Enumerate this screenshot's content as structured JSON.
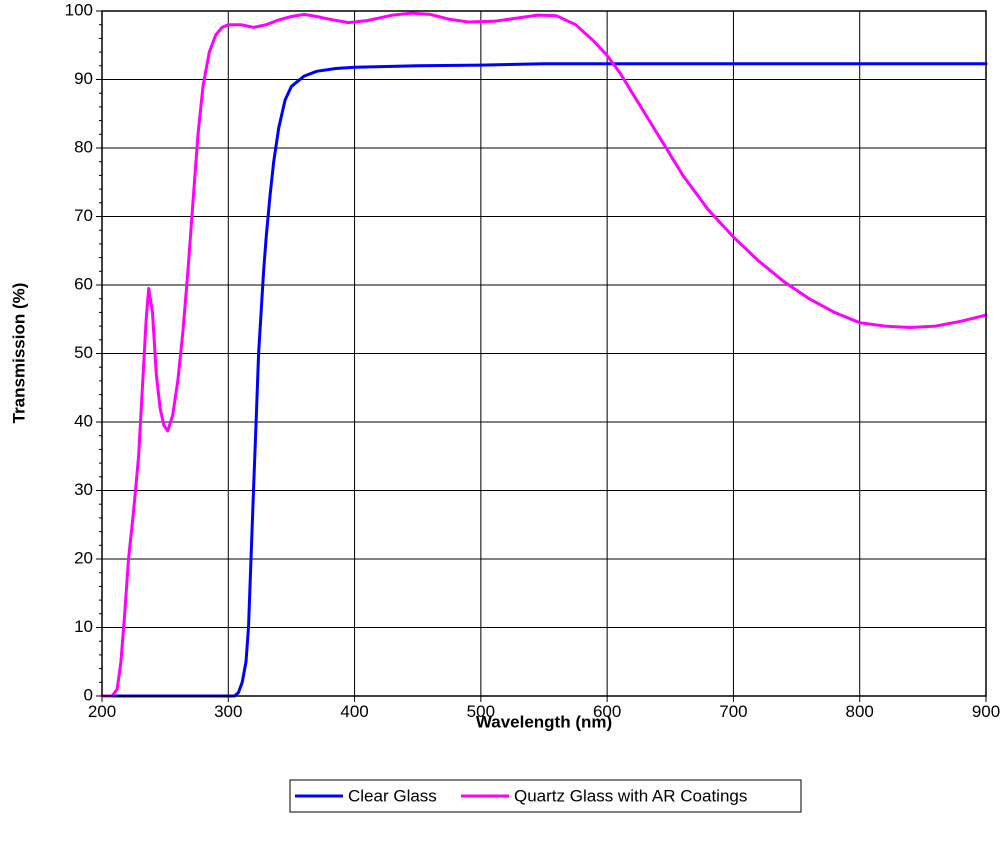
{
  "chart_data": {
    "type": "line",
    "xlabel": "Wavelength (nm)",
    "ylabel": "Transmission (%)",
    "xlim": [
      200,
      900
    ],
    "ylim": [
      0,
      100
    ],
    "x_ticks": [
      "200",
      "300",
      "400",
      "500",
      "600",
      "700",
      "800",
      "900"
    ],
    "y_ticks": [
      "0",
      "10",
      "20",
      "30",
      "40",
      "50",
      "60",
      "70",
      "80",
      "90",
      "100"
    ],
    "grid": true,
    "legend_position": "bottom-center",
    "series": [
      {
        "name": "Clear Glass",
        "color": "#0000ff",
        "points": [
          [
            200,
            0
          ],
          [
            250,
            0
          ],
          [
            300,
            0
          ],
          [
            305,
            0
          ],
          [
            308,
            0.5
          ],
          [
            311,
            2
          ],
          [
            314,
            5
          ],
          [
            316,
            10
          ],
          [
            318,
            20
          ],
          [
            320,
            30
          ],
          [
            322,
            40
          ],
          [
            324,
            50
          ],
          [
            326,
            56
          ],
          [
            328,
            62
          ],
          [
            330,
            67
          ],
          [
            333,
            73
          ],
          [
            336,
            78
          ],
          [
            340,
            83
          ],
          [
            345,
            87
          ],
          [
            350,
            89
          ],
          [
            360,
            90.5
          ],
          [
            370,
            91.2
          ],
          [
            385,
            91.6
          ],
          [
            400,
            91.8
          ],
          [
            450,
            92
          ],
          [
            500,
            92.1
          ],
          [
            550,
            92.3
          ],
          [
            600,
            92.3
          ],
          [
            700,
            92.3
          ],
          [
            800,
            92.3
          ],
          [
            900,
            92.3
          ]
        ]
      },
      {
        "name": "Quartz Glass with AR Coatings",
        "color": "#ff00ff",
        "points": [
          [
            200,
            0
          ],
          [
            208,
            0
          ],
          [
            212,
            1
          ],
          [
            215,
            5
          ],
          [
            218,
            12
          ],
          [
            221,
            20
          ],
          [
            225,
            27
          ],
          [
            229,
            35
          ],
          [
            232,
            45
          ],
          [
            235,
            55
          ],
          [
            237,
            59.5
          ],
          [
            240,
            56
          ],
          [
            243,
            47
          ],
          [
            246,
            42
          ],
          [
            249,
            39.5
          ],
          [
            252,
            38.7
          ],
          [
            256,
            41
          ],
          [
            260,
            46
          ],
          [
            264,
            53
          ],
          [
            268,
            62
          ],
          [
            272,
            72
          ],
          [
            276,
            82
          ],
          [
            280,
            89
          ],
          [
            285,
            94
          ],
          [
            290,
            96.5
          ],
          [
            295,
            97.6
          ],
          [
            300,
            98
          ],
          [
            310,
            98
          ],
          [
            320,
            97.6
          ],
          [
            330,
            98
          ],
          [
            340,
            98.7
          ],
          [
            350,
            99.2
          ],
          [
            360,
            99.5
          ],
          [
            370,
            99.2
          ],
          [
            380,
            98.8
          ],
          [
            395,
            98.3
          ],
          [
            410,
            98.6
          ],
          [
            430,
            99.4
          ],
          [
            445,
            99.7
          ],
          [
            460,
            99.5
          ],
          [
            475,
            98.8
          ],
          [
            490,
            98.4
          ],
          [
            510,
            98.5
          ],
          [
            530,
            99
          ],
          [
            545,
            99.4
          ],
          [
            560,
            99.3
          ],
          [
            575,
            98
          ],
          [
            590,
            95.5
          ],
          [
            600,
            93.5
          ],
          [
            610,
            91
          ],
          [
            620,
            88
          ],
          [
            640,
            82
          ],
          [
            660,
            76
          ],
          [
            680,
            71
          ],
          [
            700,
            67
          ],
          [
            720,
            63.5
          ],
          [
            740,
            60.5
          ],
          [
            760,
            58
          ],
          [
            780,
            56
          ],
          [
            800,
            54.5
          ],
          [
            820,
            54
          ],
          [
            840,
            53.8
          ],
          [
            860,
            54
          ],
          [
            880,
            54.7
          ],
          [
            900,
            55.6
          ]
        ]
      }
    ]
  }
}
